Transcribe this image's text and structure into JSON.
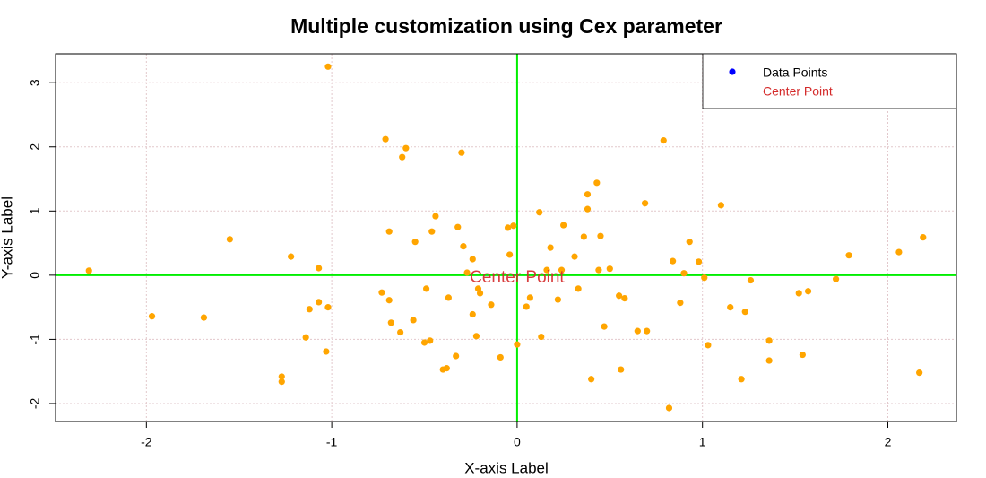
{
  "chart_data": {
    "type": "scatter",
    "title": "Multiple customization using Cex parameter",
    "x_label": "X-axis Label",
    "y_label": "Y-axis Label",
    "color": "#ffa500",
    "x": [
      -2.31,
      -1.97,
      -1.69,
      -1.55,
      -1.22,
      -1.07,
      -1.02,
      -1.27,
      -1.27,
      -1.12,
      -1.14,
      -1.07,
      -1.02,
      -1.03,
      -0.71,
      -0.6,
      -0.62,
      -0.69,
      -0.73,
      -0.69,
      -0.68,
      -0.63,
      -0.56,
      -0.55,
      -0.49,
      -0.5,
      -0.47,
      -0.46,
      -0.44,
      -0.4,
      -0.38,
      -0.37,
      -0.33,
      -0.32,
      -0.3,
      -0.29,
      -0.27,
      -0.24,
      -0.24,
      -0.21,
      -0.2,
      -0.22,
      -0.14,
      -0.09,
      -0.05,
      -0.02,
      -0.04,
      0.0,
      0.05,
      0.07,
      0.12,
      0.13,
      0.16,
      0.18,
      0.22,
      0.24,
      0.25,
      0.31,
      0.33,
      0.36,
      0.38,
      0.38,
      0.43,
      0.45,
      0.4,
      0.44,
      0.47,
      0.5,
      0.55,
      0.56,
      0.58,
      0.65,
      0.69,
      0.7,
      0.79,
      0.82,
      0.84,
      0.88,
      0.9,
      0.93,
      0.98,
      1.01,
      1.03,
      1.1,
      1.15,
      1.21,
      1.23,
      1.26,
      1.36,
      1.36,
      1.52,
      1.54,
      1.57,
      1.72,
      1.79,
      2.06,
      2.17,
      2.19
    ],
    "y": [
      0.07,
      -0.64,
      -0.66,
      0.56,
      0.29,
      0.11,
      3.25,
      -1.58,
      -1.66,
      -0.53,
      -0.97,
      -0.42,
      -0.5,
      -1.19,
      2.12,
      1.98,
      1.84,
      0.68,
      -0.27,
      -0.39,
      -0.74,
      -0.89,
      -0.7,
      0.52,
      -0.21,
      -1.05,
      -1.02,
      0.68,
      0.92,
      -1.47,
      -1.45,
      -0.35,
      -1.26,
      0.75,
      1.91,
      0.45,
      0.04,
      -0.61,
      0.25,
      -0.21,
      -0.28,
      -0.95,
      -0.46,
      -1.28,
      0.74,
      0.77,
      0.32,
      -1.08,
      -0.49,
      -0.35,
      0.98,
      -0.96,
      0.08,
      0.43,
      -0.38,
      0.08,
      0.78,
      0.29,
      -0.21,
      0.6,
      1.26,
      1.03,
      1.44,
      0.61,
      -1.62,
      0.08,
      -0.8,
      0.1,
      -0.32,
      -1.47,
      -0.36,
      -0.87,
      1.12,
      -0.87,
      2.1,
      -2.07,
      0.22,
      -0.43,
      0.03,
      0.52,
      0.21,
      -0.04,
      -1.09,
      1.09,
      -0.5,
      -1.62,
      -0.57,
      -0.08,
      -1.02,
      -1.33,
      -0.28,
      -1.24,
      -0.25,
      -0.06,
      0.31,
      0.36,
      -1.52,
      0.59
    ],
    "xlim": [
      -2.49,
      2.37
    ],
    "ylim": [
      -2.28,
      3.45
    ],
    "xticks": [
      -2,
      -1,
      0,
      1,
      2
    ],
    "yticks": [
      -2,
      -1,
      0,
      1,
      2,
      3
    ],
    "grid": true,
    "reference_lines": {
      "color": "#00ee00",
      "h": [
        0
      ],
      "v": [
        0
      ]
    },
    "annotation": {
      "text": "Center Point",
      "x": 0,
      "y": 0,
      "color": "#d42a2a"
    },
    "legend": {
      "position": "topright",
      "items": [
        {
          "label": "Data Points",
          "color": "#0000ff",
          "marker": true
        },
        {
          "label": "Center Point",
          "color": "#d42a2a",
          "marker": false
        }
      ]
    }
  }
}
